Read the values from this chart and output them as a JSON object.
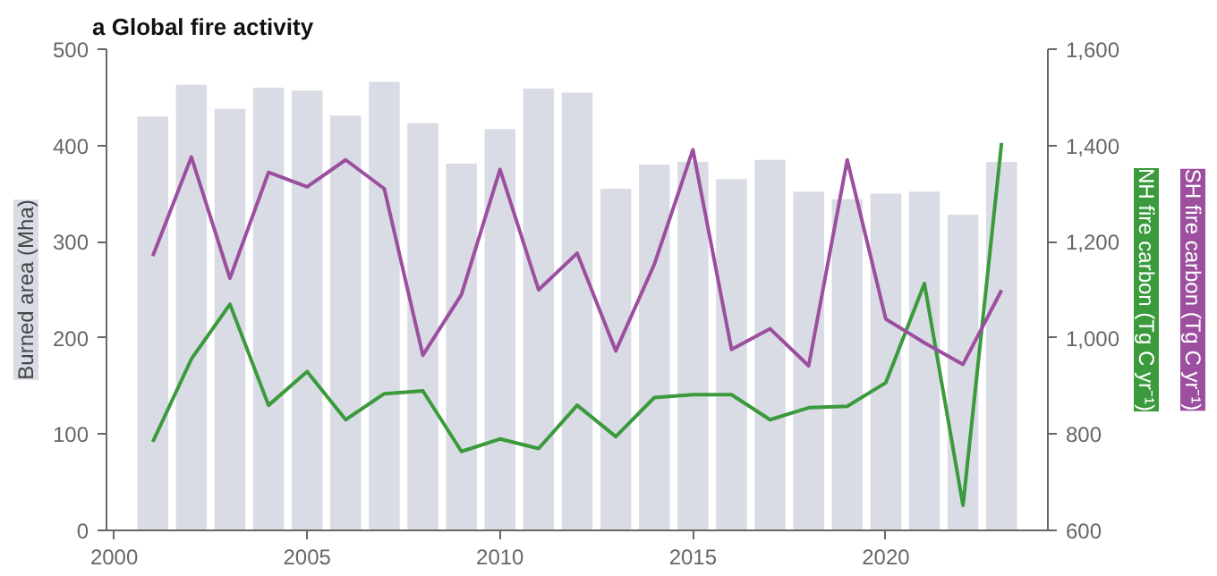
{
  "chart_data": {
    "type": "bar",
    "title": "a Global fire activity",
    "ylabel": "Burned area (Mha)",
    "x": [
      2001,
      2002,
      2003,
      2004,
      2005,
      2006,
      2007,
      2008,
      2009,
      2010,
      2011,
      2012,
      2013,
      2014,
      2015,
      2016,
      2017,
      2018,
      2019,
      2020,
      2021,
      2022,
      2023
    ],
    "series": [
      {
        "color": "#d9dce5",
        "values": [
          430,
          463,
          438,
          460,
          457,
          431,
          466,
          423,
          381,
          417,
          459,
          455,
          355,
          380,
          383,
          365,
          385,
          352,
          344,
          350,
          352,
          328,
          383
        ]
      },
      {
        "type": "line",
        "axis": "y2",
        "name": "NH fire carbon (Tg C yr⁻¹)",
        "color": "#3a9a3c",
        "values": [
          784,
          956,
          1070,
          860,
          930,
          830,
          884,
          890,
          764,
          790,
          770,
          860,
          795,
          876,
          882,
          882,
          830,
          855,
          858,
          907,
          1113,
          652,
          1405
        ]
      },
      {
        "type": "line",
        "axis": "y2",
        "name": "SH fire carbon (Tg C yr⁻¹)",
        "color": "#9b4f9e",
        "values": [
          1170,
          1376,
          1124,
          1344,
          1314,
          1370,
          1310,
          964,
          1090,
          1350,
          1100,
          1176,
          973,
          1153,
          1391,
          976,
          1019,
          942,
          1370,
          1039,
          990,
          945,
          1099
        ]
      }
    ],
    "xlim": [
      1999.8,
      2024.2
    ],
    "xticks": [
      2000,
      2005,
      2010,
      2015,
      2020
    ],
    "ylim": [
      0,
      500
    ],
    "yticks": [
      0,
      100,
      200,
      300,
      400,
      500
    ],
    "y2lim": [
      600,
      1600
    ],
    "y2ticks": [
      {
        "value": 600,
        "label": "600"
      },
      {
        "value": 800,
        "label": "800"
      },
      {
        "value": 1000,
        "label": "1,000"
      },
      {
        "value": 1200,
        "label": "1,200"
      },
      {
        "value": 1400,
        "label": "1,400"
      },
      {
        "value": 1600,
        "label": "1,600"
      }
    ],
    "grid": false
  }
}
